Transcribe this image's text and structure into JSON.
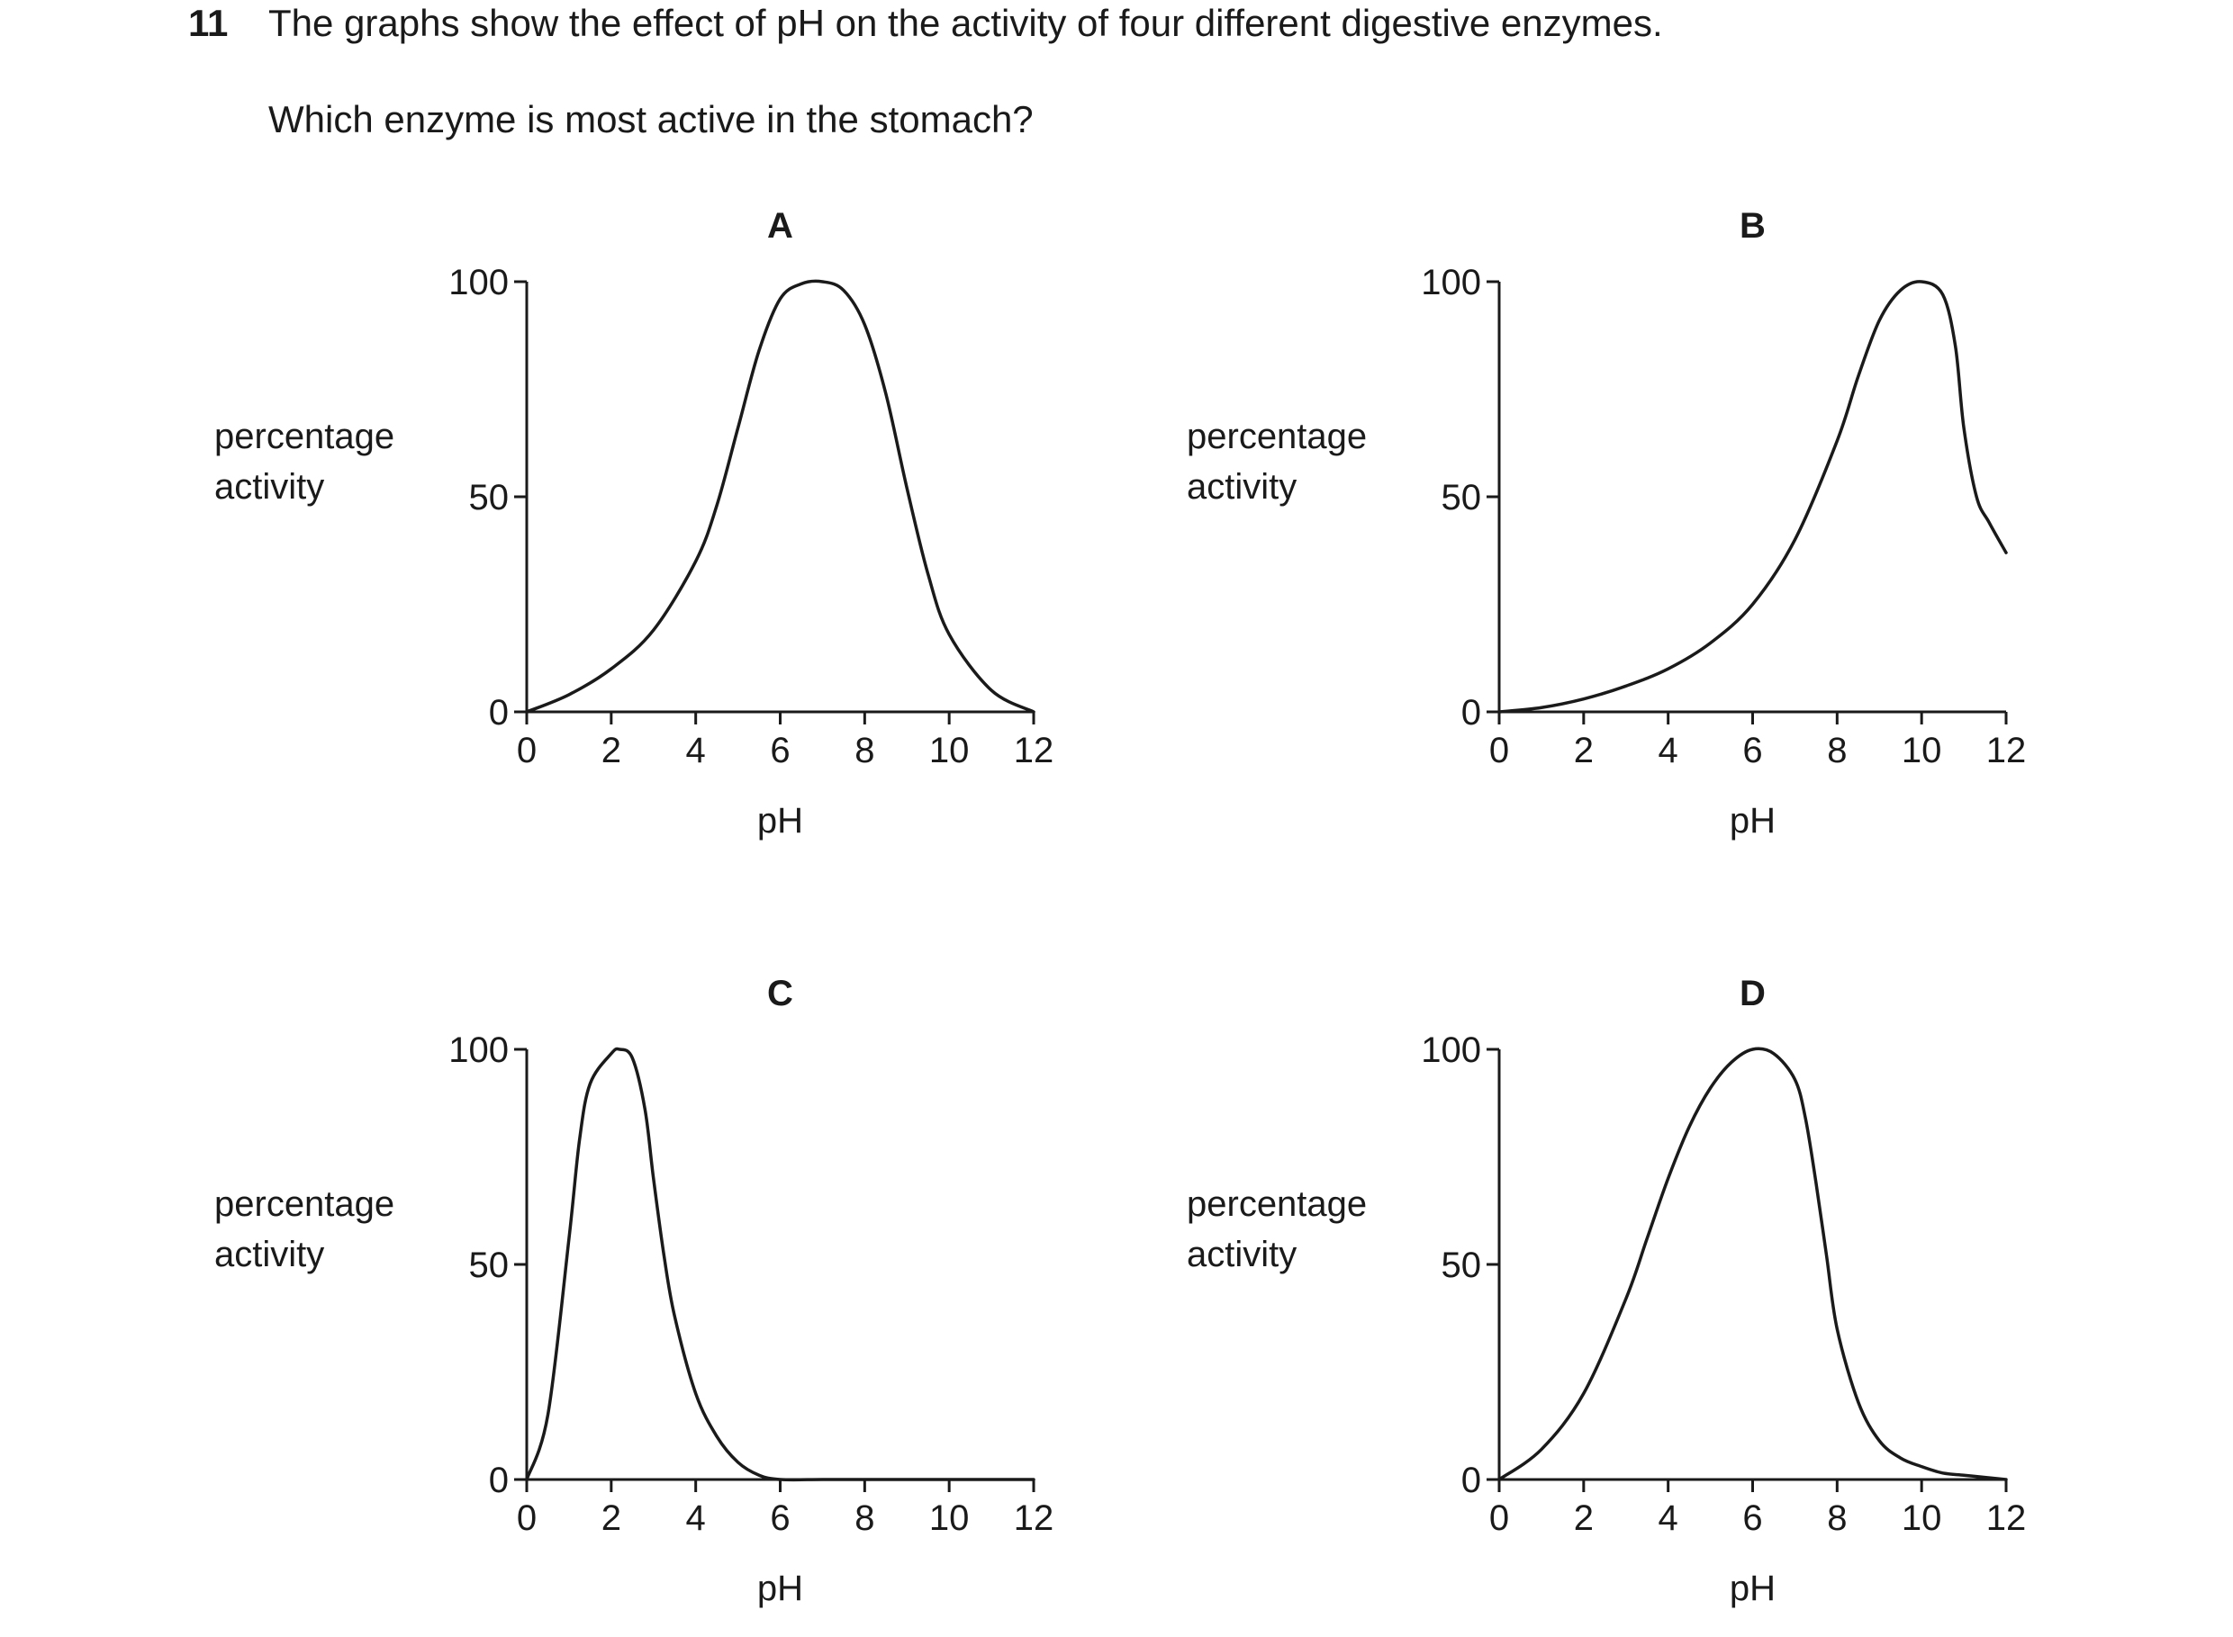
{
  "question": {
    "number": "11",
    "text": "The graphs show the effect of pH on the activity of four different digestive enzymes.",
    "prompt": "Which enzyme is most active in the stomach?"
  },
  "chart_data": [
    {
      "type": "line",
      "title": "A",
      "xlabel": "pH",
      "ylabel": "percentage\nactivity",
      "xlim": [
        0,
        12
      ],
      "ylim": [
        0,
        100
      ],
      "xticks": [
        0,
        2,
        4,
        6,
        8,
        10,
        12
      ],
      "yticks": [
        0,
        50,
        100
      ],
      "grid": false,
      "x": [
        0,
        1,
        2,
        3,
        4,
        4.5,
        5,
        5.5,
        6,
        6.5,
        7,
        7.5,
        8,
        8.5,
        9,
        9.5,
        10,
        11,
        12
      ],
      "y": [
        0,
        4,
        10,
        19,
        35,
        48,
        66,
        84,
        96,
        99.5,
        100,
        98,
        90,
        74,
        52,
        32,
        18,
        5,
        0
      ]
    },
    {
      "type": "line",
      "title": "B",
      "xlabel": "pH",
      "ylabel": "percentage\nactivity",
      "xlim": [
        0,
        12
      ],
      "ylim": [
        0,
        100
      ],
      "xticks": [
        0,
        2,
        4,
        6,
        8,
        10,
        12
      ],
      "yticks": [
        0,
        50,
        100
      ],
      "grid": false,
      "x": [
        0,
        1,
        2,
        3,
        4,
        5,
        6,
        7,
        8,
        8.5,
        9,
        9.5,
        10,
        10.5,
        10.8,
        11,
        11.3,
        11.6,
        12
      ],
      "y": [
        0,
        1,
        3,
        6,
        10,
        16,
        25,
        40,
        63,
        78,
        91,
        98,
        100,
        97,
        85,
        66,
        50,
        44,
        37
      ]
    },
    {
      "type": "line",
      "title": "C",
      "xlabel": "pH",
      "ylabel": "percentage\nactivity",
      "xlim": [
        0,
        12
      ],
      "ylim": [
        0,
        100
      ],
      "xticks": [
        0,
        2,
        4,
        6,
        8,
        10,
        12
      ],
      "yticks": [
        0,
        50,
        100
      ],
      "grid": false,
      "x": [
        0,
        0.5,
        1,
        1.25,
        1.5,
        2,
        2.2,
        2.5,
        2.8,
        3,
        3.25,
        3.5,
        4,
        4.5,
        5,
        5.5,
        6,
        7,
        8,
        9,
        10,
        11,
        12
      ],
      "y": [
        0,
        15,
        56,
        79,
        92,
        99,
        100,
        98,
        86,
        70,
        52,
        38,
        20,
        10,
        4,
        1,
        0,
        0,
        0,
        0,
        0,
        0,
        0
      ]
    },
    {
      "type": "line",
      "title": "D",
      "xlabel": "pH",
      "ylabel": "percentage\nactivity",
      "xlim": [
        0,
        12
      ],
      "ylim": [
        0,
        100
      ],
      "xticks": [
        0,
        2,
        4,
        6,
        8,
        10,
        12
      ],
      "yticks": [
        0,
        50,
        100
      ],
      "grid": false,
      "x": [
        0,
        1,
        2,
        3,
        3.5,
        4,
        4.5,
        5,
        5.5,
        6,
        6.5,
        7,
        7.25,
        7.5,
        7.75,
        8,
        8.5,
        9,
        9.5,
        10,
        10.5,
        11,
        11.5,
        12
      ],
      "y": [
        0,
        7,
        20,
        42,
        56,
        70,
        82,
        91,
        97,
        100,
        99,
        93,
        84,
        69,
        52,
        35,
        18,
        9,
        5,
        3,
        1.5,
        1,
        0.5,
        0
      ]
    }
  ]
}
